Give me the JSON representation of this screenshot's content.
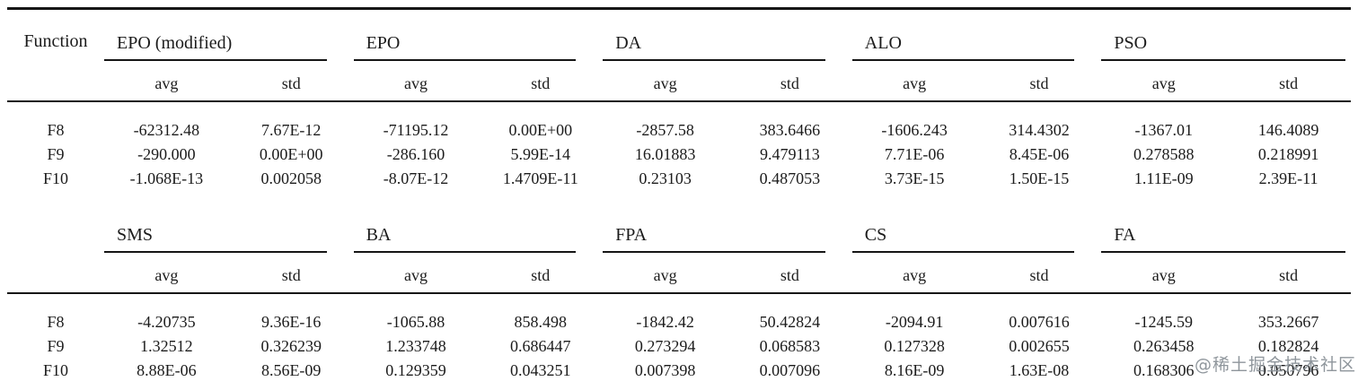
{
  "table": {
    "function_header": "Function",
    "subheaders": [
      "avg",
      "std"
    ],
    "row_labels": [
      "F8",
      "F9",
      "F10"
    ],
    "rule_color": "#161616",
    "sections": [
      {
        "groups": [
          {
            "name": "EPO (modified)",
            "rows": [
              [
                "-62312.48",
                "7.67E-12"
              ],
              [
                "-290.000",
                "0.00E+00"
              ],
              [
                "-1.068E-13",
                "0.002058"
              ]
            ]
          },
          {
            "name": "EPO",
            "rows": [
              [
                "-71195.12",
                "0.00E+00"
              ],
              [
                "-286.160",
                "5.99E-14"
              ],
              [
                "-8.07E-12",
                "1.4709E-11"
              ]
            ]
          },
          {
            "name": "DA",
            "rows": [
              [
                "-2857.58",
                "383.6466"
              ],
              [
                "16.01883",
                "9.479113"
              ],
              [
                "0.23103",
                "0.487053"
              ]
            ]
          },
          {
            "name": "ALO",
            "rows": [
              [
                "-1606.243",
                "314.4302"
              ],
              [
                "7.71E-06",
                "8.45E-06"
              ],
              [
                "3.73E-15",
                "1.50E-15"
              ]
            ]
          },
          {
            "name": "PSO",
            "rows": [
              [
                "-1367.01",
                "146.4089"
              ],
              [
                "0.278588",
                "0.218991"
              ],
              [
                "1.11E-09",
                "2.39E-11"
              ]
            ]
          }
        ]
      },
      {
        "groups": [
          {
            "name": "SMS",
            "rows": [
              [
                "-4.20735",
                "9.36E-16"
              ],
              [
                "1.32512",
                "0.326239"
              ],
              [
                "8.88E-06",
                "8.56E-09"
              ]
            ]
          },
          {
            "name": "BA",
            "rows": [
              [
                "-1065.88",
                "858.498"
              ],
              [
                "1.233748",
                "0.686447"
              ],
              [
                "0.129359",
                "0.043251"
              ]
            ]
          },
          {
            "name": "FPA",
            "rows": [
              [
                "-1842.42",
                "50.42824"
              ],
              [
                "0.273294",
                "0.068583"
              ],
              [
                "0.007398",
                "0.007096"
              ]
            ]
          },
          {
            "name": "CS",
            "rows": [
              [
                "-2094.91",
                "0.007616"
              ],
              [
                "0.127328",
                "0.002655"
              ],
              [
                "8.16E-09",
                "1.63E-08"
              ]
            ]
          },
          {
            "name": "FA",
            "rows": [
              [
                "-1245.59",
                "353.2667"
              ],
              [
                "0.263458",
                "0.182824"
              ],
              [
                "0.168306",
                "0.050796"
              ]
            ]
          }
        ]
      }
    ]
  },
  "watermark": {
    "text": "@稀土掘金技术社区",
    "color": "#8f969c"
  }
}
